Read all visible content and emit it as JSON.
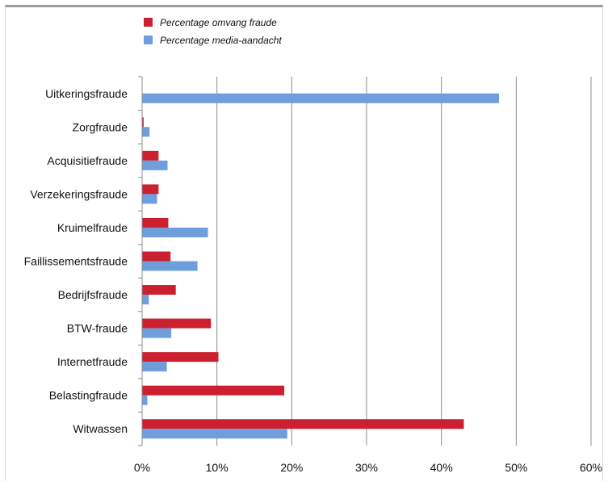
{
  "chart_data": {
    "type": "bar",
    "orientation": "horizontal",
    "title": "",
    "xlabel": "",
    "ylabel": "",
    "categories": [
      "Uitkeringsfraude",
      "Zorgfraude",
      "Acquisitiefraude",
      "Verzekeringsfraude",
      "Kruimelfraude",
      "Faillissementsfraude",
      "Bedrijfsfraude",
      "BTW-fraude",
      "Internetfraude",
      "Belastingfraude",
      "Witwassen"
    ],
    "series": [
      {
        "name": "Percentage omvang fraude",
        "color": "#cc1f2f",
        "values": [
          0,
          0.2,
          2.2,
          2.2,
          3.5,
          3.8,
          4.5,
          9.2,
          10.2,
          19,
          43
        ]
      },
      {
        "name": "Percentage media-aandacht",
        "color": "#6e9fdc",
        "values": [
          47.7,
          1,
          3.4,
          2,
          8.8,
          7.4,
          0.9,
          3.9,
          3.3,
          0.7,
          19.4
        ]
      }
    ],
    "xlim": [
      0,
      60
    ],
    "xticks": [
      "0%",
      "10%",
      "20%",
      "30%",
      "40%",
      "50%",
      "60%"
    ],
    "grid": true,
    "legend_position": "top-left"
  }
}
